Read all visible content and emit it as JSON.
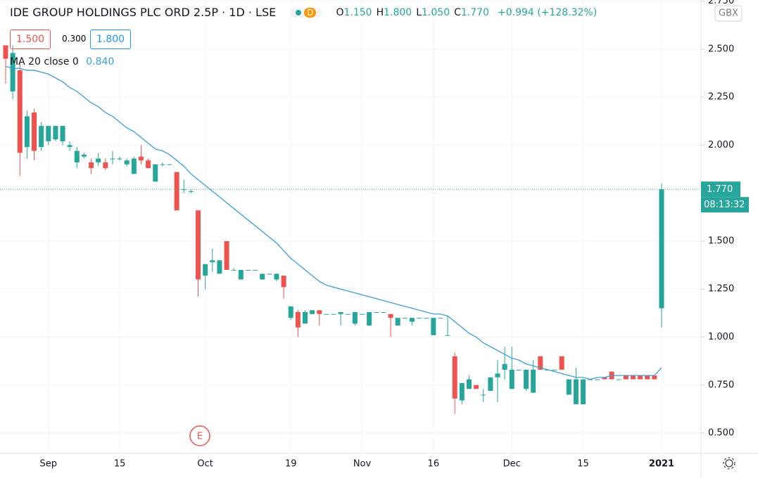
{
  "header": {
    "title": "IDE GROUP HOLDINGS PLC ORD 2.5P · 1D · LSE",
    "status": "D",
    "ohlc": [
      {
        "key": "O",
        "value": "1.150"
      },
      {
        "key": "H",
        "value": "1.800"
      },
      {
        "key": "L",
        "value": "1.050"
      },
      {
        "key": "C",
        "value": "1.770"
      }
    ],
    "change": "+0.994 (+128.32%)"
  },
  "order_panel": {
    "sell": "1.500",
    "spread": "0.300",
    "buy": "1.800"
  },
  "currency": "GBX",
  "price_tag": "1.770",
  "countdown": "08:13:32",
  "event": "E",
  "chart_data": {
    "type": "candlestick",
    "up_color": "#26a69a",
    "down_color": "#ef5350",
    "grid": true,
    "categories": [
      null,
      null,
      null,
      null,
      null,
      null,
      "Sep",
      null,
      null,
      null,
      null,
      null,
      null,
      null,
      null,
      null,
      "15",
      null,
      null,
      null,
      null,
      null,
      null,
      null,
      null,
      null,
      null,
      null,
      "Oct",
      null,
      null,
      null,
      null,
      null,
      null,
      null,
      null,
      null,
      null,
      null,
      "19",
      null,
      null,
      null,
      null,
      null,
      null,
      null,
      null,
      null,
      "Nov",
      null,
      null,
      null,
      null,
      null,
      null,
      null,
      null,
      null,
      "16",
      null,
      null,
      null,
      null,
      null,
      null,
      null,
      null,
      null,
      null,
      "Dec",
      null,
      null,
      null,
      null,
      null,
      null,
      null,
      null,
      null,
      "15",
      null,
      null,
      null,
      null,
      null,
      null,
      null,
      null,
      null,
      null,
      "2021"
    ],
    "open": [
      2.52,
      2.28,
      2.39,
      1.99,
      2.17,
      1.99,
      2.02,
      2.03,
      2.02,
      1.99,
      1.91,
      1.94,
      1.91,
      1.91,
      1.91,
      1.93,
      1.93,
      1.9,
      1.85,
      1.94,
      1.92,
      1.81,
      1.9,
      1.9,
      1.86,
      1.77,
      1.76,
      1.66,
      1.32,
      1.39,
      1.33,
      1.5,
      1.35,
      1.3,
      1.35,
      1.35,
      1.3,
      1.33,
      1.3,
      1.32,
      1.1,
      1.13,
      1.07,
      1.12,
      1.14,
      1.12,
      1.12,
      1.12,
      1.12,
      1.07,
      1.12,
      1.06,
      1.13,
      1.13,
      1.12,
      1.06,
      1.1,
      1.08,
      1.1,
      1.1,
      1.01,
      1.1,
      1.01,
      0.9,
      0.67,
      0.73,
      0.75,
      0.7,
      0.72,
      0.79,
      0.83,
      0.73,
      0.83,
      0.73,
      0.71,
      0.9,
      0.83,
      0.83,
      0.9,
      0.7,
      0.65,
      0.65,
      0.78,
      0.78,
      0.79,
      0.82,
      0.78,
      0.8,
      0.8,
      0.8,
      0.8,
      0.8,
      1.15
    ],
    "high": [
      2.52,
      2.52,
      2.43,
      2.18,
      2.19,
      2.12,
      2.1,
      2.1,
      2.1,
      2.02,
      1.99,
      1.96,
      1.93,
      1.96,
      1.93,
      1.97,
      1.94,
      1.93,
      1.94,
      2.0,
      1.93,
      1.9,
      1.91,
      1.9,
      1.86,
      1.82,
      1.77,
      1.66,
      1.38,
      1.46,
      1.4,
      1.5,
      1.36,
      1.35,
      1.35,
      1.35,
      1.33,
      1.33,
      1.33,
      1.32,
      1.16,
      1.14,
      1.14,
      1.14,
      1.14,
      1.12,
      1.12,
      1.13,
      1.12,
      1.13,
      1.12,
      1.13,
      1.13,
      1.13,
      1.12,
      1.1,
      1.1,
      1.1,
      1.1,
      1.1,
      1.1,
      1.1,
      1.11,
      0.92,
      0.76,
      0.8,
      0.75,
      0.73,
      0.79,
      0.88,
      0.95,
      0.95,
      0.83,
      0.83,
      0.88,
      0.9,
      0.83,
      0.83,
      0.9,
      0.78,
      0.84,
      0.78,
      0.78,
      0.78,
      0.79,
      0.82,
      0.78,
      0.8,
      0.8,
      0.8,
      0.8,
      0.8,
      1.8
    ],
    "low": [
      2.32,
      2.24,
      1.84,
      1.93,
      1.92,
      1.97,
      2.0,
      2.02,
      2.0,
      1.97,
      1.88,
      1.93,
      1.85,
      1.89,
      1.87,
      1.9,
      1.92,
      1.89,
      1.85,
      1.9,
      1.88,
      1.81,
      1.89,
      1.9,
      1.66,
      1.75,
      1.75,
      1.21,
      1.25,
      1.34,
      1.33,
      1.35,
      1.35,
      1.3,
      1.35,
      1.35,
      1.3,
      1.33,
      1.29,
      1.2,
      1.09,
      1.0,
      1.07,
      1.12,
      1.06,
      1.12,
      1.12,
      1.06,
      1.12,
      1.06,
      1.12,
      1.06,
      1.13,
      1.13,
      1.0,
      1.06,
      1.1,
      1.06,
      1.1,
      1.1,
      1.01,
      1.1,
      1.01,
      0.6,
      0.65,
      0.73,
      0.73,
      0.66,
      0.72,
      0.66,
      0.78,
      0.73,
      0.83,
      0.72,
      0.71,
      0.83,
      0.83,
      0.83,
      0.83,
      0.7,
      0.65,
      0.65,
      0.78,
      0.78,
      0.78,
      0.78,
      0.78,
      0.78,
      0.78,
      0.78,
      0.78,
      0.78,
      1.05
    ],
    "close": [
      2.45,
      2.48,
      1.96,
      2.15,
      1.97,
      2.1,
      2.1,
      2.1,
      2.1,
      2.0,
      1.97,
      1.95,
      1.88,
      1.93,
      1.88,
      1.93,
      1.93,
      1.92,
      1.93,
      1.92,
      1.88,
      1.9,
      1.9,
      1.9,
      1.66,
      1.77,
      1.76,
      1.3,
      1.38,
      1.4,
      1.4,
      1.35,
      1.35,
      1.35,
      1.35,
      1.35,
      1.33,
      1.33,
      1.33,
      1.26,
      1.16,
      1.05,
      1.13,
      1.14,
      1.12,
      1.12,
      1.12,
      1.13,
      1.12,
      1.13,
      1.12,
      1.13,
      1.13,
      1.13,
      1.1,
      1.1,
      1.1,
      1.1,
      1.1,
      1.1,
      1.1,
      1.1,
      1.01,
      0.68,
      0.76,
      0.78,
      0.73,
      0.7,
      0.79,
      0.81,
      0.86,
      0.83,
      0.83,
      0.83,
      0.83,
      0.83,
      0.83,
      0.83,
      0.83,
      0.78,
      0.78,
      0.78,
      0.78,
      0.78,
      0.78,
      0.78,
      0.78,
      0.78,
      0.78,
      0.78,
      0.78,
      0.78,
      1.77
    ],
    "ma": {
      "name": "MA 20 close 0",
      "value_label": "0.840",
      "color": "#3c9fd8",
      "values": [
        2.41,
        2.4,
        2.4,
        2.39,
        2.39,
        2.38,
        2.37,
        2.35,
        2.33,
        2.3,
        2.28,
        2.25,
        2.22,
        2.2,
        2.17,
        2.15,
        2.12,
        2.09,
        2.07,
        2.04,
        2.01,
        1.98,
        1.97,
        1.95,
        1.92,
        1.89,
        1.85,
        1.82,
        1.79,
        1.76,
        1.73,
        1.7,
        1.67,
        1.64,
        1.61,
        1.58,
        1.55,
        1.52,
        1.49,
        1.45,
        1.41,
        1.38,
        1.35,
        1.32,
        1.29,
        1.27,
        1.26,
        1.25,
        1.24,
        1.23,
        1.22,
        1.21,
        1.2,
        1.19,
        1.18,
        1.17,
        1.16,
        1.15,
        1.14,
        1.13,
        1.12,
        1.12,
        1.11,
        1.08,
        1.05,
        1.02,
        1.0,
        0.97,
        0.95,
        0.93,
        0.91,
        0.89,
        0.88,
        0.86,
        0.85,
        0.84,
        0.83,
        0.82,
        0.81,
        0.8,
        0.79,
        0.79,
        0.78,
        0.79,
        0.79,
        0.8,
        0.8,
        0.8,
        0.8,
        0.8,
        0.8,
        0.8,
        0.84
      ]
    },
    "ylim": [
      0.394,
      2.756
    ],
    "yticks": [
      {
        "value": 0.5,
        "label": "0.500"
      },
      {
        "value": 0.75,
        "label": "0.750"
      },
      {
        "value": 1,
        "label": "1.000"
      },
      {
        "value": 1.25,
        "label": "1.250"
      },
      {
        "value": 1.5,
        "label": "1.500"
      },
      {
        "value": 1.75,
        "label": "1.750"
      },
      {
        "value": 2,
        "label": "2.000"
      },
      {
        "value": 2.25,
        "label": "2.250"
      },
      {
        "value": 2.5,
        "label": "2.500"
      },
      {
        "value": 2.75,
        "label": "2.750"
      }
    ]
  }
}
